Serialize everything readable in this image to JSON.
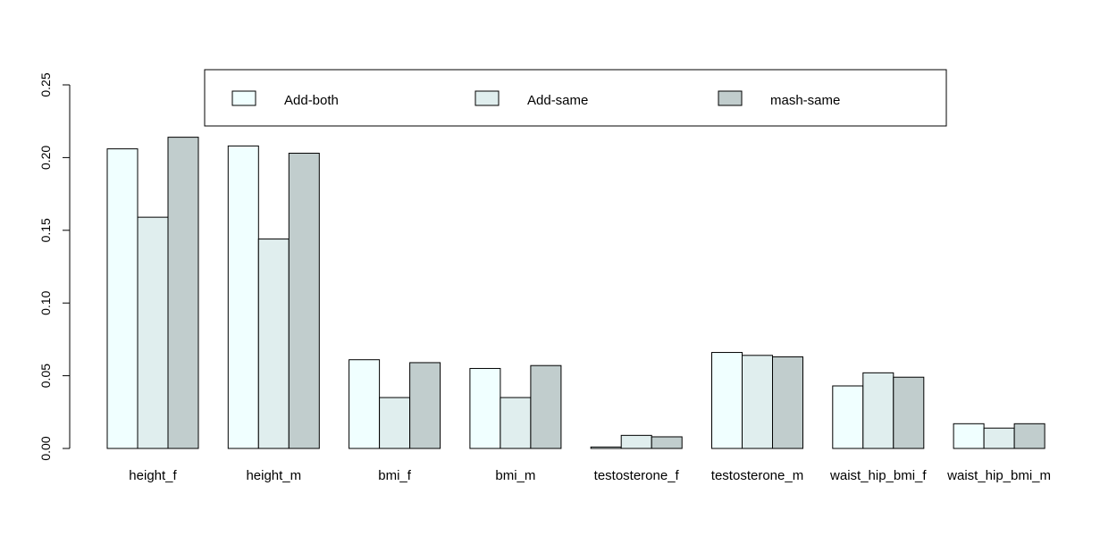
{
  "chart_data": {
    "type": "bar",
    "title": "",
    "xlabel": "",
    "ylabel": "",
    "ylim": [
      0,
      0.25
    ],
    "yticks": [
      "0.00",
      "0.05",
      "0.10",
      "0.15",
      "0.20",
      "0.25"
    ],
    "categories": [
      "height_f",
      "height_m",
      "bmi_f",
      "bmi_m",
      "testosterone_f",
      "testosterone_m",
      "waist_hip_bmi_f",
      "waist_hip_bmi_m"
    ],
    "series": [
      {
        "name": "Add-both",
        "color": "#f0ffff",
        "values": [
          0.206,
          0.208,
          0.061,
          0.055,
          0.001,
          0.066,
          0.043,
          0.017
        ]
      },
      {
        "name": "Add-same",
        "color": "#e0eeee",
        "values": [
          0.159,
          0.144,
          0.035,
          0.035,
          0.009,
          0.064,
          0.052,
          0.014
        ]
      },
      {
        "name": "mash-same",
        "color": "#c1cdcd",
        "values": [
          0.214,
          0.203,
          0.059,
          0.057,
          0.008,
          0.063,
          0.049,
          0.017
        ]
      }
    ],
    "legend_position": "top",
    "grid": false
  }
}
